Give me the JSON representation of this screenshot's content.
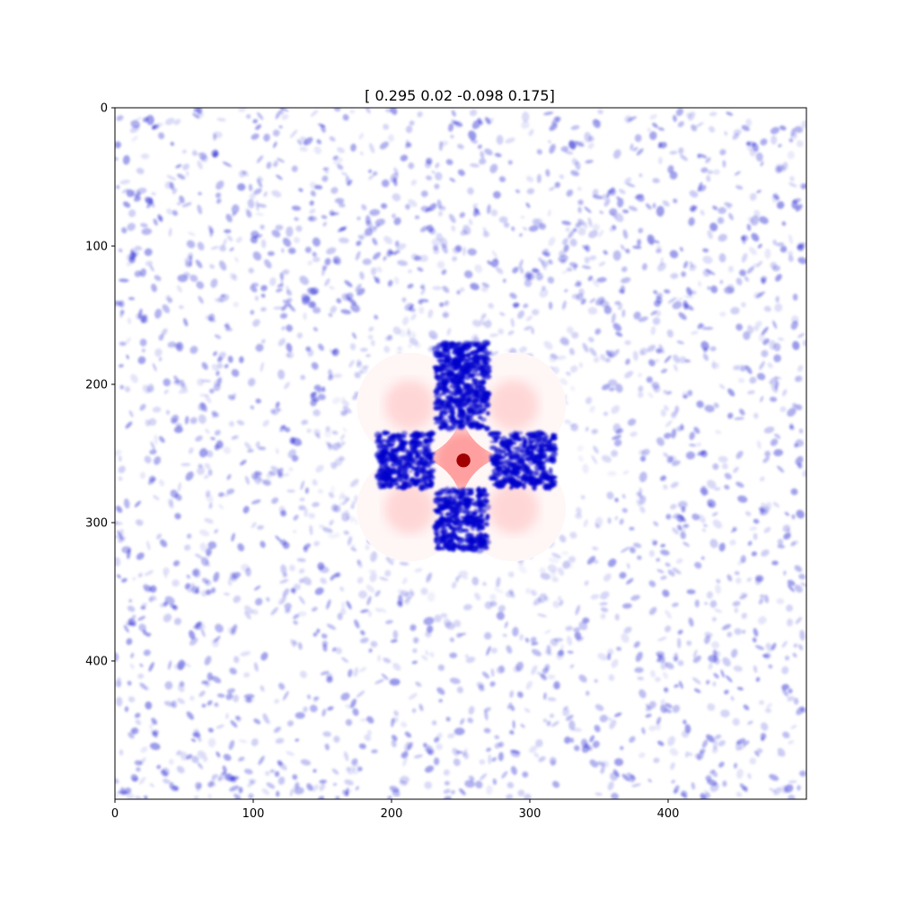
{
  "chart_data": {
    "type": "heatmap",
    "title": "[ 0.295  0.02  -0.098  0.175]",
    "xlabel": "",
    "ylabel": "",
    "xlim": [
      0,
      500
    ],
    "ylim": [
      500,
      0
    ],
    "x_ticks": [
      "0",
      "100",
      "200",
      "300",
      "400"
    ],
    "y_ticks": [
      "0",
      "100",
      "200",
      "300",
      "400"
    ],
    "colormap": "seismic",
    "grid": false,
    "colors": {
      "positive": "#ff0000",
      "peak": "#a00000",
      "negative": "#0000cc",
      "zero": "#ffffff"
    },
    "center": [
      252,
      255
    ],
    "features": [
      {
        "name": "central peak",
        "x": 252,
        "y": 255,
        "sign": "positive"
      },
      {
        "name": "central square",
        "x_range": [
          230,
          272
        ],
        "y_range": [
          232,
          276
        ],
        "sign": "positive"
      },
      {
        "name": "quadrant lobe upper-left",
        "x": 213,
        "y": 215,
        "sign": "positive"
      },
      {
        "name": "quadrant lobe upper-right",
        "x": 288,
        "y": 215,
        "sign": "positive"
      },
      {
        "name": "quadrant lobe lower-left",
        "x": 213,
        "y": 290,
        "sign": "positive"
      },
      {
        "name": "quadrant lobe lower-right",
        "x": 288,
        "y": 290,
        "sign": "positive"
      },
      {
        "name": "cross arm top",
        "x_range": [
          232,
          270
        ],
        "y_range": [
          170,
          232
        ],
        "sign": "negative"
      },
      {
        "name": "cross arm bottom",
        "x_range": [
          232,
          270
        ],
        "y_range": [
          276,
          320
        ],
        "sign": "negative"
      },
      {
        "name": "cross arm left",
        "x_range": [
          190,
          230
        ],
        "y_range": [
          235,
          275
        ],
        "sign": "negative"
      },
      {
        "name": "cross arm right",
        "x_range": [
          272,
          318
        ],
        "y_range": [
          235,
          275
        ],
        "sign": "negative"
      },
      {
        "name": "background noise",
        "x_range": [
          0,
          500
        ],
        "y_range": [
          0,
          500
        ],
        "sign": "negative"
      }
    ]
  }
}
